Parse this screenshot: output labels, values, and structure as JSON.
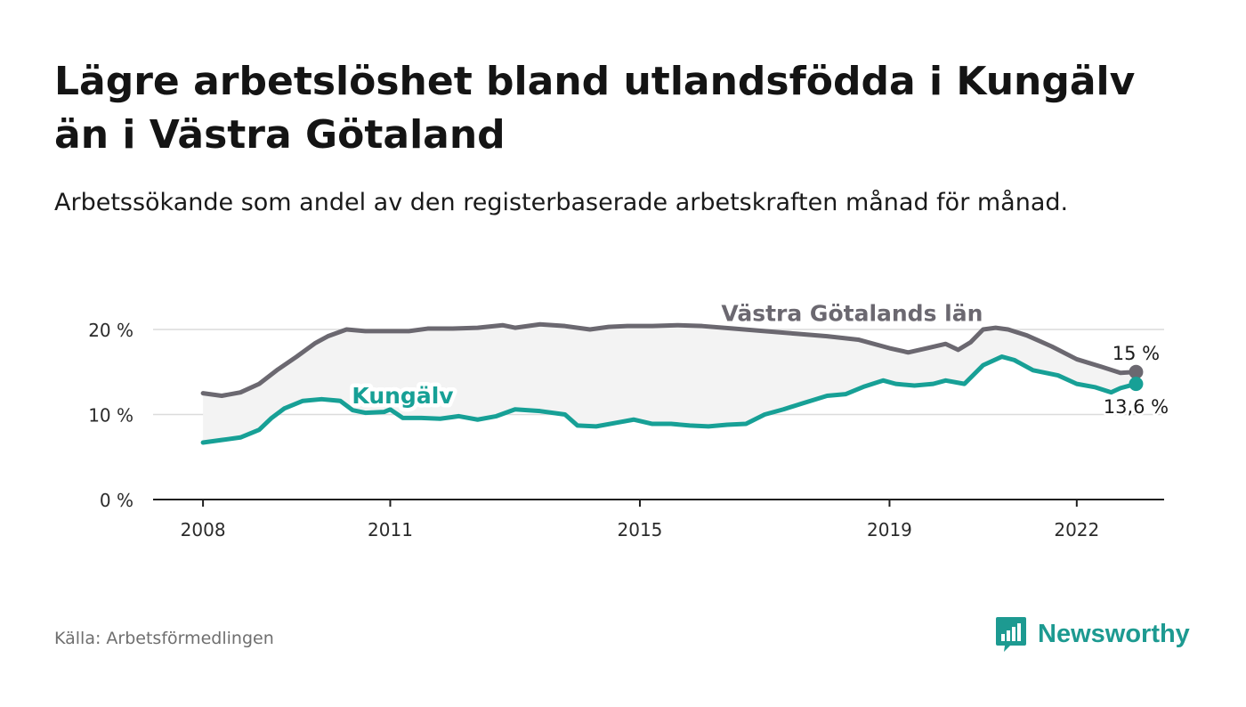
{
  "title": "Lägre arbetslöshet bland utlandsfödda i Kungälv än i Västra Götaland",
  "subtitle": "Arbetssökande som andel av den registerbaserade arbetskraften månad för månad.",
  "source": "Källa: Arbetsförmedlingen",
  "brand": {
    "name": "Newsworthy",
    "color": "#1d9a91",
    "icon": "newsworthy-chart-bubble-icon"
  },
  "chart_data": {
    "type": "line",
    "title": "Lägre arbetslöshet bland utlandsfödda i Kungälv än i Västra Götaland",
    "subtitle": "Arbetssökande som andel av den registerbaserade arbetskraften månad för månad.",
    "xlabel": "",
    "ylabel": "",
    "unit": "%",
    "xlim": [
      2007.2,
      2023.4
    ],
    "ylim": [
      0,
      20
    ],
    "grid": "horizontal",
    "x_ticks": [
      {
        "value": 2008,
        "label": "2008"
      },
      {
        "value": 2011,
        "label": "2011"
      },
      {
        "value": 2015,
        "label": "2015"
      },
      {
        "value": 2019,
        "label": "2019"
      },
      {
        "value": 2022,
        "label": "2022"
      }
    ],
    "y_ticks": [
      {
        "value": 0,
        "label": "0 %"
      },
      {
        "value": 10,
        "label": "10 %"
      },
      {
        "value": 20,
        "label": "20 %"
      }
    ],
    "band_between_series": true,
    "series": [
      {
        "name": "Västra Götalands län",
        "color": "#6b6870",
        "x": [
          2008.0,
          2008.3,
          2008.6,
          2008.9,
          2009.2,
          2009.5,
          2009.8,
          2010.0,
          2010.3,
          2010.6,
          2011.0,
          2011.3,
          2011.6,
          2012.0,
          2012.4,
          2012.8,
          2013.0,
          2013.4,
          2013.8,
          2014.2,
          2014.5,
          2014.8,
          2015.2,
          2015.6,
          2016.0,
          2016.5,
          2017.0,
          2017.5,
          2018.0,
          2018.5,
          2019.0,
          2019.3,
          2019.6,
          2019.9,
          2020.1,
          2020.3,
          2020.5,
          2020.7,
          2020.9,
          2021.2,
          2021.6,
          2022.0,
          2022.4,
          2022.7,
          2022.95
        ],
        "values": [
          12.5,
          12.2,
          12.6,
          13.6,
          15.3,
          16.8,
          18.4,
          19.2,
          20.0,
          19.8,
          19.8,
          19.8,
          20.1,
          20.1,
          20.2,
          20.5,
          20.2,
          20.6,
          20.4,
          20.0,
          20.3,
          20.4,
          20.4,
          20.5,
          20.4,
          20.1,
          19.8,
          19.5,
          19.2,
          18.8,
          17.8,
          17.3,
          17.8,
          18.3,
          17.6,
          18.5,
          20.0,
          20.2,
          20.0,
          19.3,
          18.0,
          16.5,
          15.6,
          14.9,
          15.0
        ]
      },
      {
        "name": "Kungälv",
        "color": "#17a096",
        "x": [
          2008.0,
          2008.3,
          2008.6,
          2008.9,
          2009.1,
          2009.3,
          2009.6,
          2009.9,
          2010.2,
          2010.4,
          2010.6,
          2010.9,
          2011.0,
          2011.2,
          2011.5,
          2011.8,
          2012.1,
          2012.4,
          2012.7,
          2013.0,
          2013.4,
          2013.8,
          2014.0,
          2014.3,
          2014.6,
          2014.9,
          2015.2,
          2015.5,
          2015.8,
          2016.1,
          2016.4,
          2016.7,
          2017.0,
          2017.3,
          2017.6,
          2018.0,
          2018.3,
          2018.6,
          2018.9,
          2019.1,
          2019.4,
          2019.7,
          2019.9,
          2020.2,
          2020.5,
          2020.8,
          2021.0,
          2021.3,
          2021.7,
          2022.0,
          2022.3,
          2022.55,
          2022.7,
          2022.95
        ],
        "values": [
          6.7,
          7.0,
          7.3,
          8.2,
          9.6,
          10.7,
          11.6,
          11.8,
          11.6,
          10.5,
          10.2,
          10.3,
          10.6,
          9.6,
          9.6,
          9.5,
          9.8,
          9.4,
          9.8,
          10.6,
          10.4,
          10.0,
          8.7,
          8.6,
          9.0,
          9.4,
          8.9,
          8.9,
          8.7,
          8.6,
          8.8,
          8.9,
          10.0,
          10.6,
          11.3,
          12.2,
          12.4,
          13.3,
          14.0,
          13.6,
          13.4,
          13.6,
          14.0,
          13.6,
          15.8,
          16.8,
          16.4,
          15.2,
          14.6,
          13.6,
          13.2,
          12.6,
          13.1,
          13.6
        ]
      }
    ],
    "annotations": [
      {
        "text": "Västra Götalands län",
        "series": "Västra Götalands län",
        "x": 2018.4,
        "y": 21.0
      },
      {
        "text": "Kungälv",
        "series": "Kungälv",
        "x": 2011.2,
        "y": 11.3
      },
      {
        "text": "15 %",
        "series": "Västra Götalands län",
        "x": 2022.95,
        "y": 15.0
      },
      {
        "text": "13,6 %",
        "series": "Kungälv",
        "x": 2022.95,
        "y": 13.6
      }
    ]
  }
}
